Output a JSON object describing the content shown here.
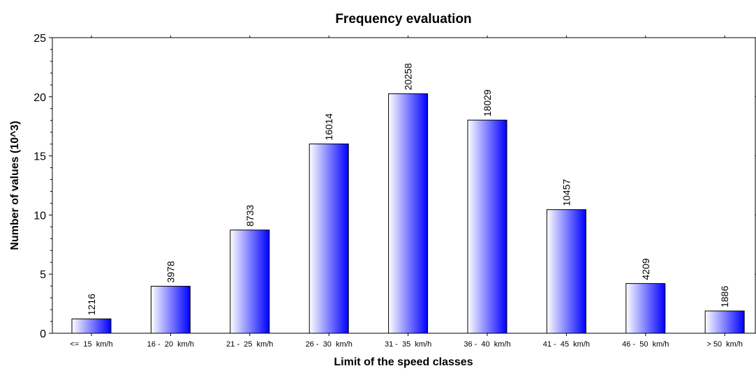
{
  "chart_data": {
    "type": "bar",
    "title": "Frequency evaluation",
    "xlabel": "Limit of the speed classes",
    "ylabel": "Number of values (10^3)",
    "ylim": [
      0,
      25
    ],
    "y_ticks": [
      "0",
      "5",
      "10",
      "15",
      "20",
      "25"
    ],
    "y_tick_values": [
      0,
      5,
      10,
      15,
      20,
      25
    ],
    "categories": [
      "<=  15  km/h",
      "16 -  20  km/h",
      "21 -  25  km/h",
      "26 -  30  km/h",
      "31 -  35  km/h",
      "36 -  40  km/h",
      "41 -  45  km/h",
      "46 -  50  km/h",
      "> 50  km/h"
    ],
    "values": [
      1.216,
      3.978,
      8.733,
      16.014,
      20.258,
      18.029,
      10.457,
      4.209,
      1.886
    ],
    "data_labels": [
      "1216",
      "3978",
      "8733",
      "16014",
      "20258",
      "18029",
      "10457",
      "4209",
      "1886"
    ],
    "grid": false,
    "colors": {
      "bar_light": "#ffffff",
      "bar_dark": "#0000ff",
      "bar_outline": "#000000",
      "axis": "#000000"
    }
  }
}
